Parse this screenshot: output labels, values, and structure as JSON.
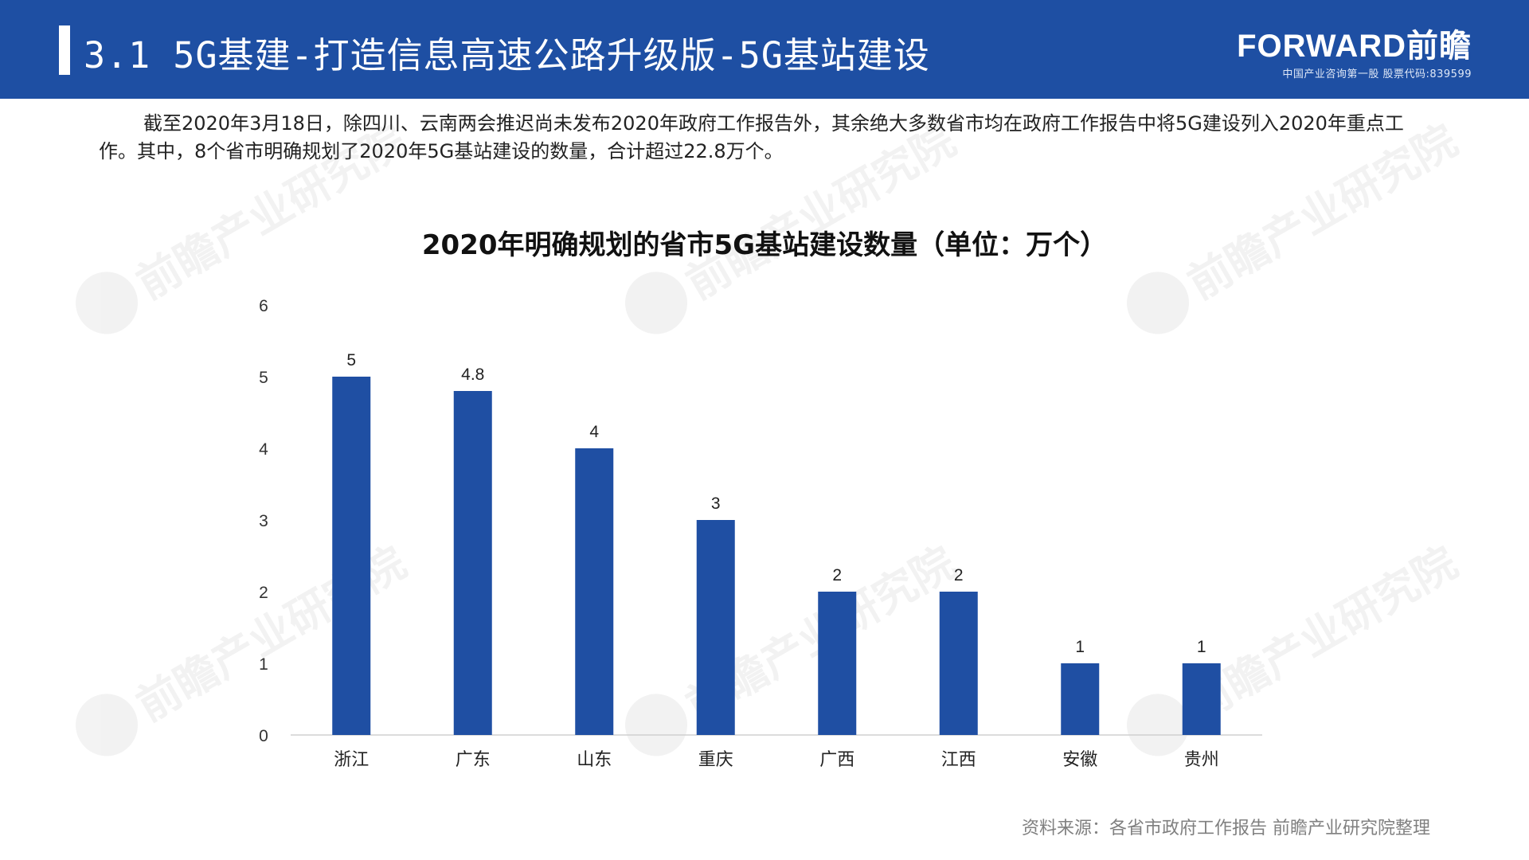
{
  "header": {
    "title": "3.1 5G基建-打造信息高速公路升级版-5G基站建设",
    "brand_logo": "FORWARD前瞻",
    "brand_tagline": "中国产业咨询第一股 股票代码:839599"
  },
  "intro": "截至2020年3月18日，除四川、云南两会推迟尚未发布2020年政府工作报告外，其余绝大多数省市均在政府工作报告中将5G建设列入2020年重点工作。其中，8个省市明确规划了2020年5G基站建设的数量，合计超过22.8万个。",
  "watermark": "前瞻产业研究院",
  "source": "资料来源：各省市政府工作报告 前瞻产业研究院整理",
  "colors": {
    "header": "#1e4fa3",
    "bar": "#1f4fa3"
  },
  "chart_data": {
    "type": "bar",
    "title": "2020年明确规划的省市5G基站建设数量（单位：万个）",
    "categories": [
      "浙江",
      "广东",
      "山东",
      "重庆",
      "广西",
      "江西",
      "安徽",
      "贵州"
    ],
    "values": [
      5,
      4.8,
      4,
      3,
      2,
      2,
      1,
      1
    ],
    "value_labels": [
      "5",
      "4.8",
      "4",
      "3",
      "2",
      "2",
      "1",
      "1"
    ],
    "ylim": [
      0,
      6
    ],
    "yticks": [
      "0",
      "1",
      "2",
      "3",
      "4",
      "5",
      "6"
    ],
    "grid": false,
    "legend": "none"
  }
}
